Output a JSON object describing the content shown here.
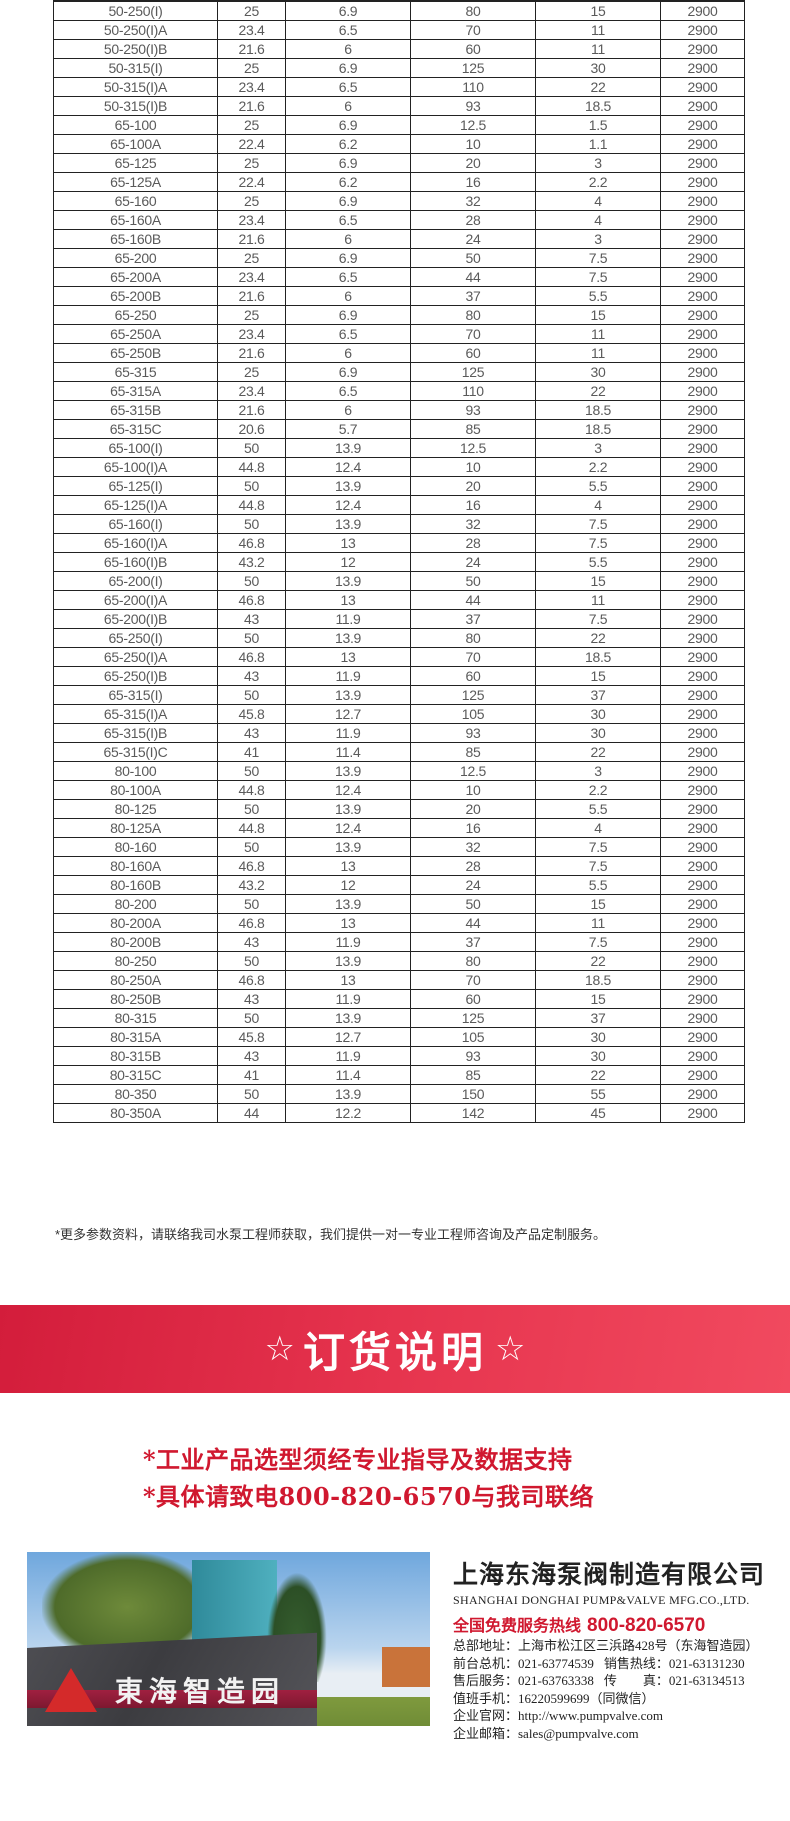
{
  "table": {
    "rows": [
      [
        "50-250(I)",
        "25",
        "6.9",
        "80",
        "15",
        "2900"
      ],
      [
        "50-250(I)A",
        "23.4",
        "6.5",
        "70",
        "11",
        "2900"
      ],
      [
        "50-250(I)B",
        "21.6",
        "6",
        "60",
        "11",
        "2900"
      ],
      [
        "50-315(I)",
        "25",
        "6.9",
        "125",
        "30",
        "2900"
      ],
      [
        "50-315(I)A",
        "23.4",
        "6.5",
        "110",
        "22",
        "2900"
      ],
      [
        "50-315(I)B",
        "21.6",
        "6",
        "93",
        "18.5",
        "2900"
      ],
      [
        "65-100",
        "25",
        "6.9",
        "12.5",
        "1.5",
        "2900"
      ],
      [
        "65-100A",
        "22.4",
        "6.2",
        "10",
        "1.1",
        "2900"
      ],
      [
        "65-125",
        "25",
        "6.9",
        "20",
        "3",
        "2900"
      ],
      [
        "65-125A",
        "22.4",
        "6.2",
        "16",
        "2.2",
        "2900"
      ],
      [
        "65-160",
        "25",
        "6.9",
        "32",
        "4",
        "2900"
      ],
      [
        "65-160A",
        "23.4",
        "6.5",
        "28",
        "4",
        "2900"
      ],
      [
        "65-160B",
        "21.6",
        "6",
        "24",
        "3",
        "2900"
      ],
      [
        "65-200",
        "25",
        "6.9",
        "50",
        "7.5",
        "2900"
      ],
      [
        "65-200A",
        "23.4",
        "6.5",
        "44",
        "7.5",
        "2900"
      ],
      [
        "65-200B",
        "21.6",
        "6",
        "37",
        "5.5",
        "2900"
      ],
      [
        "65-250",
        "25",
        "6.9",
        "80",
        "15",
        "2900"
      ],
      [
        "65-250A",
        "23.4",
        "6.5",
        "70",
        "11",
        "2900"
      ],
      [
        "65-250B",
        "21.6",
        "6",
        "60",
        "11",
        "2900"
      ],
      [
        "65-315",
        "25",
        "6.9",
        "125",
        "30",
        "2900"
      ],
      [
        "65-315A",
        "23.4",
        "6.5",
        "110",
        "22",
        "2900"
      ],
      [
        "65-315B",
        "21.6",
        "6",
        "93",
        "18.5",
        "2900"
      ],
      [
        "65-315C",
        "20.6",
        "5.7",
        "85",
        "18.5",
        "2900"
      ],
      [
        "65-100(I)",
        "50",
        "13.9",
        "12.5",
        "3",
        "2900"
      ],
      [
        "65-100(I)A",
        "44.8",
        "12.4",
        "10",
        "2.2",
        "2900"
      ],
      [
        "65-125(I)",
        "50",
        "13.9",
        "20",
        "5.5",
        "2900"
      ],
      [
        "65-125(I)A",
        "44.8",
        "12.4",
        "16",
        "4",
        "2900"
      ],
      [
        "65-160(I)",
        "50",
        "13.9",
        "32",
        "7.5",
        "2900"
      ],
      [
        "65-160(I)A",
        "46.8",
        "13",
        "28",
        "7.5",
        "2900"
      ],
      [
        "65-160(I)B",
        "43.2",
        "12",
        "24",
        "5.5",
        "2900"
      ],
      [
        "65-200(I)",
        "50",
        "13.9",
        "50",
        "15",
        "2900"
      ],
      [
        "65-200(I)A",
        "46.8",
        "13",
        "44",
        "11",
        "2900"
      ],
      [
        "65-200(I)B",
        "43",
        "11.9",
        "37",
        "7.5",
        "2900"
      ],
      [
        "65-250(I)",
        "50",
        "13.9",
        "80",
        "22",
        "2900"
      ],
      [
        "65-250(I)A",
        "46.8",
        "13",
        "70",
        "18.5",
        "2900"
      ],
      [
        "65-250(I)B",
        "43",
        "11.9",
        "60",
        "15",
        "2900"
      ],
      [
        "65-315(I)",
        "50",
        "13.9",
        "125",
        "37",
        "2900"
      ],
      [
        "65-315(I)A",
        "45.8",
        "12.7",
        "105",
        "30",
        "2900"
      ],
      [
        "65-315(I)B",
        "43",
        "11.9",
        "93",
        "30",
        "2900"
      ],
      [
        "65-315(I)C",
        "41",
        "11.4",
        "85",
        "22",
        "2900"
      ],
      [
        "80-100",
        "50",
        "13.9",
        "12.5",
        "3",
        "2900"
      ],
      [
        "80-100A",
        "44.8",
        "12.4",
        "10",
        "2.2",
        "2900"
      ],
      [
        "80-125",
        "50",
        "13.9",
        "20",
        "5.5",
        "2900"
      ],
      [
        "80-125A",
        "44.8",
        "12.4",
        "16",
        "4",
        "2900"
      ],
      [
        "80-160",
        "50",
        "13.9",
        "32",
        "7.5",
        "2900"
      ],
      [
        "80-160A",
        "46.8",
        "13",
        "28",
        "7.5",
        "2900"
      ],
      [
        "80-160B",
        "43.2",
        "12",
        "24",
        "5.5",
        "2900"
      ],
      [
        "80-200",
        "50",
        "13.9",
        "50",
        "15",
        "2900"
      ],
      [
        "80-200A",
        "46.8",
        "13",
        "44",
        "11",
        "2900"
      ],
      [
        "80-200B",
        "43",
        "11.9",
        "37",
        "7.5",
        "2900"
      ],
      [
        "80-250",
        "50",
        "13.9",
        "80",
        "22",
        "2900"
      ],
      [
        "80-250A",
        "46.8",
        "13",
        "70",
        "18.5",
        "2900"
      ],
      [
        "80-250B",
        "43",
        "11.9",
        "60",
        "15",
        "2900"
      ],
      [
        "80-315",
        "50",
        "13.9",
        "125",
        "37",
        "2900"
      ],
      [
        "80-315A",
        "45.8",
        "12.7",
        "105",
        "30",
        "2900"
      ],
      [
        "80-315B",
        "43",
        "11.9",
        "93",
        "30",
        "2900"
      ],
      [
        "80-315C",
        "41",
        "11.4",
        "85",
        "22",
        "2900"
      ],
      [
        "80-350",
        "50",
        "13.9",
        "150",
        "55",
        "2900"
      ],
      [
        "80-350A",
        "44",
        "12.2",
        "142",
        "45",
        "2900"
      ]
    ]
  },
  "note": "*更多参数资料，请联络我司水泵工程师获取，我们提供一对一专业工程师咨询及产品定制服务。",
  "banner": {
    "star": "☆",
    "title": "订货说明",
    "color": "#e0304a"
  },
  "order_lines": [
    "*工业产品选型须经专业指导及数据支持",
    "*具体请致电800-820-6570与我司联络"
  ],
  "photo": {
    "sign_text": "東海智造园"
  },
  "company": {
    "name_cn": "上海东海泵阀制造有限公司",
    "name_en": "SHANGHAI DONGHAI PUMP&VALVE MFG.CO.,LTD.",
    "hotline_label": "全国免费服务热线",
    "hotline": "800-820-6570",
    "address": "总部地址：上海市松江区三浜路428号（东海智造园）",
    "front_desk": "前台总机：021-63774539",
    "sales": "销售热线：021-63131230",
    "after_sales": "售后服务：021-63763338",
    "fax": "传　　真：021-63134513",
    "mobile": "值班手机：16220599699（同微信）",
    "website": "企业官网：http://www.pumpvalve.com",
    "email": "企业邮箱：sales@pumpvalve.com"
  }
}
